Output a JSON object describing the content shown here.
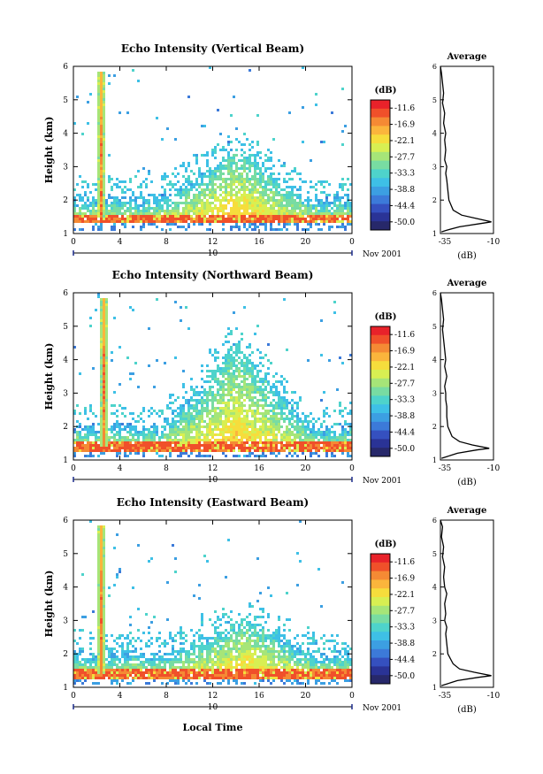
{
  "figure": {
    "date_label": "Nov 2001",
    "xlabel_bottom": "Local Time"
  },
  "colorbar": {
    "unit": "(dB)",
    "ticks": [
      "-11.6",
      "-16.9",
      "-22.1",
      "-27.7",
      "-33.3",
      "-38.8",
      "-44.4",
      "-50.0"
    ],
    "colors": [
      "#e8222a",
      "#f0502a",
      "#f58a34",
      "#fbb53c",
      "#f6dd3c",
      "#d8ef52",
      "#a6e578",
      "#78dca2",
      "#4ed3cb",
      "#3ec0e6",
      "#3c9fe2",
      "#3c7ad9",
      "#3550bf",
      "#2a3396",
      "#27286a"
    ]
  },
  "panels": [
    {
      "title": "Echo Intensity (Vertical Beam)",
      "ylabel": "Height (km)",
      "day_label": "10",
      "avg_title": "Average",
      "avg_xlabel": "(dB)"
    },
    {
      "title": "Echo Intensity (Northward Beam)",
      "ylabel": "Height (km)",
      "day_label": "10",
      "avg_title": "Average",
      "avg_xlabel": "(dB)"
    },
    {
      "title": "Echo Intensity (Eastward Beam)",
      "ylabel": "Height (km)",
      "day_label": "10",
      "avg_title": "Average",
      "avg_xlabel": "(dB)"
    }
  ],
  "chart_data": [
    {
      "type": "heatmap",
      "title": "Echo Intensity (Vertical Beam)",
      "xlabel": "",
      "ylabel": "Height (km)",
      "xlim": [
        0,
        24
      ],
      "ylim": [
        1,
        6
      ],
      "xticks": [
        "0",
        "4",
        "8",
        "12",
        "16",
        "20",
        "0"
      ],
      "yticks": [
        "1",
        "2",
        "3",
        "4",
        "5",
        "6"
      ],
      "colorbar_label": "(dB)",
      "colorbar_ticks": [
        -11.6,
        -16.9,
        -22.1,
        -27.7,
        -33.3,
        -38.8,
        -44.4,
        -50.0
      ],
      "ground_height_km": 1.5,
      "spike_time_h": 2.3,
      "peak_time_h": 14.0,
      "peak_top_km": 3.5,
      "average_profile": {
        "title": "Average",
        "xlabel": "(dB)",
        "xlim": [
          -35,
          -10
        ],
        "ylim": [
          1,
          6
        ],
        "xticks": [
          "-35",
          "-10"
        ],
        "height_km": [
          1.05,
          1.1,
          1.2,
          1.3,
          1.35,
          1.45,
          1.55,
          1.7,
          2.0,
          2.3,
          2.6,
          2.8,
          3.0,
          3.2,
          3.5,
          3.8,
          4.0,
          4.3,
          4.6,
          4.9,
          5.2,
          5.5,
          5.8,
          6.0
        ],
        "value_db": [
          -34.5,
          -32,
          -26,
          -16,
          -11,
          -18,
          -25,
          -29,
          -31,
          -31.5,
          -32,
          -32.5,
          -32,
          -33,
          -32.5,
          -33,
          -32.5,
          -33.5,
          -33,
          -34,
          -33.5,
          -34,
          -34.5,
          -35
        ]
      }
    },
    {
      "type": "heatmap",
      "title": "Echo Intensity (Northward Beam)",
      "xlabel": "",
      "ylabel": "Height (km)",
      "xlim": [
        0,
        24
      ],
      "ylim": [
        1,
        6
      ],
      "xticks": [
        "0",
        "4",
        "8",
        "12",
        "16",
        "20",
        "0"
      ],
      "yticks": [
        "1",
        "2",
        "3",
        "4",
        "5",
        "6"
      ],
      "colorbar_label": "(dB)",
      "colorbar_ticks": [
        -11.6,
        -16.9,
        -22.1,
        -27.7,
        -33.3,
        -38.8,
        -44.4,
        -50.0
      ],
      "ground_height_km": 1.45,
      "spike_time_h": 2.5,
      "peak_time_h": 14.0,
      "peak_top_km": 4.5,
      "average_profile": {
        "title": "Average",
        "xlabel": "(dB)",
        "xlim": [
          -35,
          -10
        ],
        "ylim": [
          1,
          6
        ],
        "xticks": [
          "-35",
          "-10"
        ],
        "height_km": [
          1.05,
          1.1,
          1.2,
          1.3,
          1.35,
          1.45,
          1.55,
          1.7,
          2.0,
          2.3,
          2.6,
          2.8,
          3.0,
          3.2,
          3.5,
          3.8,
          4.0,
          4.3,
          4.6,
          4.9,
          5.2,
          5.5,
          5.8,
          6.0
        ],
        "value_db": [
          -34.5,
          -32,
          -27,
          -18,
          -12,
          -20,
          -26,
          -29.5,
          -31.5,
          -32,
          -32,
          -32.5,
          -32.5,
          -33,
          -32,
          -33,
          -32.5,
          -33,
          -33.5,
          -34,
          -33.5,
          -34,
          -34.5,
          -35
        ]
      }
    },
    {
      "type": "heatmap",
      "title": "Echo Intensity (Eastward Beam)",
      "xlabel": "Local Time",
      "ylabel": "Height (km)",
      "xlim": [
        0,
        24
      ],
      "ylim": [
        1,
        6
      ],
      "xticks": [
        "0",
        "4",
        "8",
        "12",
        "16",
        "20",
        "0"
      ],
      "yticks": [
        "1",
        "2",
        "3",
        "4",
        "5",
        "6"
      ],
      "colorbar_label": "(dB)",
      "colorbar_ticks": [
        -11.6,
        -16.9,
        -22.1,
        -27.7,
        -33.3,
        -38.8,
        -44.4,
        -50.0
      ],
      "ground_height_km": 1.45,
      "spike_time_h": 2.3,
      "peak_time_h": 14.5,
      "peak_top_km": 3.0,
      "average_profile": {
        "title": "Average",
        "xlabel": "(dB)",
        "xlim": [
          -35,
          -10
        ],
        "ylim": [
          1,
          6
        ],
        "xticks": [
          "-35",
          "-10"
        ],
        "height_km": [
          1.05,
          1.1,
          1.2,
          1.3,
          1.35,
          1.45,
          1.55,
          1.7,
          2.0,
          2.3,
          2.6,
          2.8,
          3.0,
          3.2,
          3.5,
          3.8,
          4.0,
          4.3,
          4.6,
          4.9,
          5.2,
          5.5,
          5.8,
          6.0
        ],
        "value_db": [
          -34.5,
          -32,
          -27,
          -17,
          -11,
          -19,
          -26,
          -29,
          -31.5,
          -32,
          -32.5,
          -32,
          -33,
          -32.5,
          -33,
          -32,
          -33,
          -33.5,
          -33,
          -34,
          -33.5,
          -34.5,
          -34,
          -35
        ]
      }
    }
  ]
}
